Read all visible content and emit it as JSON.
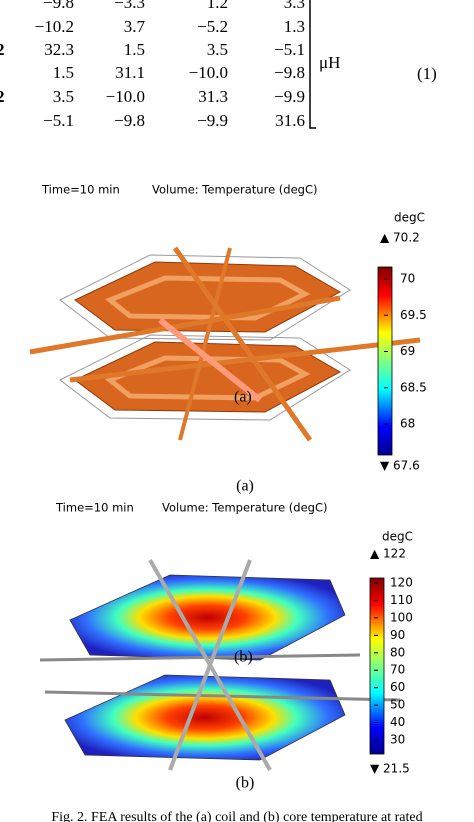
{
  "matrix": {
    "rows": [
      {
        "cells": [
          "−9.8",
          "−3.3",
          "1.2",
          "3.3"
        ]
      },
      {
        "cells": [
          "−10.2",
          "3.7",
          "−5.2",
          "1.3"
        ]
      },
      {
        "label": "2",
        "cells": [
          "32.3",
          "1.5",
          "3.5",
          "−5.1"
        ]
      },
      {
        "cells": [
          "1.5",
          "31.1",
          "−10.0",
          "−9.8"
        ]
      },
      {
        "label": "2",
        "cells": [
          "3.5",
          "−10.0",
          "31.3",
          "−9.9"
        ]
      },
      {
        "cells": [
          "−5.1",
          "−9.8",
          "−9.9",
          "31.6"
        ]
      }
    ],
    "unit": "μH",
    "equation_number": "(1)"
  },
  "figure_a": {
    "time": "Time=10 min",
    "quantity": "Volume: Temperature (degC)",
    "unit": "degC",
    "max_label": "▲ 70.2",
    "ticks": [
      "70",
      "69.5",
      "69",
      "68.5",
      "68"
    ],
    "min_label": "▼ 67.6",
    "inner_label": "(a)",
    "caption": "(a)"
  },
  "figure_b": {
    "time": "Time=10 min",
    "quantity": "Volume: Temperature (degC)",
    "unit": "degC",
    "max_label": "▲ 122",
    "ticks": [
      "120",
      "110",
      "100",
      "90",
      "80",
      "70",
      "60",
      "50",
      "40",
      "30"
    ],
    "min_label": "▼ 21.5",
    "inner_label": "(b)",
    "caption": "(b)"
  },
  "figure_caption": "Fig. 2. FEA results of the (a) coil and (b) core temperature at rated"
}
